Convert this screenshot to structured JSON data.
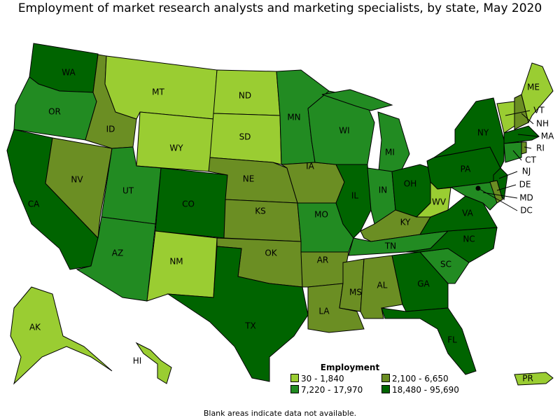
{
  "title": "Employment of market research analysts and marketing specialists, by state, May 2020",
  "legend": {
    "title": "Employment",
    "items": [
      {
        "label": "30 - 1,840",
        "color": "#9ACD32"
      },
      {
        "label": "2,100 - 6,650",
        "color": "#6B8E23"
      },
      {
        "label": "7,220 - 17,970",
        "color": "#228B22"
      },
      {
        "label": "18,480 - 95,690",
        "color": "#006400"
      }
    ]
  },
  "note": "Blank areas indicate data not available.",
  "states": {
    "light": [
      "MT",
      "ND",
      "SD",
      "WY",
      "NM",
      "WV",
      "AK",
      "HI",
      "ME",
      "VT",
      "PR"
    ],
    "olive": [
      "ID",
      "NV",
      "NE",
      "KS",
      "OK",
      "IA",
      "AR",
      "LA",
      "MS",
      "AL",
      "KY",
      "NH",
      "RI",
      "DE"
    ],
    "medium": [
      "OR",
      "UT",
      "AZ",
      "MN",
      "WI",
      "MI",
      "IN",
      "MO",
      "TN",
      "SC",
      "CT",
      "MD"
    ],
    "dark": [
      "WA",
      "CA",
      "CO",
      "TX",
      "IL",
      "OH",
      "PA",
      "NY",
      "NJ",
      "VA",
      "NC",
      "GA",
      "FL",
      "MA",
      "DC"
    ]
  }
}
